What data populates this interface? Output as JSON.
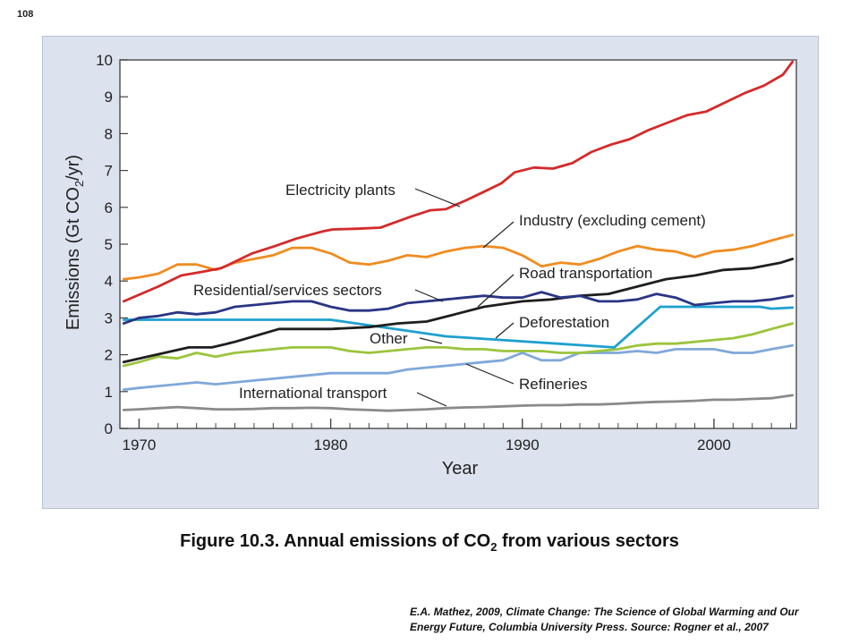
{
  "page_number": "108",
  "caption": {
    "prefix": "Figure 10.3.  Annual emissions of CO",
    "sub": "2",
    "suffix": " from various sectors"
  },
  "credit": {
    "line1": "E.A. Mathez, 2009, Climate Change: The Science of Global Warming and Our",
    "line2": "Energy Future, Columbia University Press. Source: Rogner et al., 2007"
  },
  "chart_data": {
    "type": "line",
    "xlabel": "Year",
    "ylabel": "Emissions (Gt CO2/yr)",
    "xlim": [
      1969,
      2004.3
    ],
    "ylim": [
      0,
      10
    ],
    "xticks": [
      1970,
      1980,
      1990,
      2000
    ],
    "yticks": [
      0,
      1,
      2,
      3,
      4,
      5,
      6,
      7,
      8,
      9,
      10
    ],
    "grid": false,
    "series": [
      {
        "name": "Electricity plants",
        "color": "#d42a2a",
        "x": [
          1969.2,
          1971,
          1972.2,
          1973.3,
          1974.3,
          1975.9,
          1977.1,
          1978.2,
          1978.9,
          1979.6,
          1980.1,
          1981.4,
          1982.6,
          1984.2,
          1985.2,
          1986,
          1987.1,
          1988.1,
          1988.9,
          1989.6,
          1990.6,
          1991.6,
          1992.6,
          1993.6,
          1994.6,
          1995.6,
          1996.6,
          1997.6,
          1998.6,
          1999.6,
          2000.6,
          2001.6,
          2002.6,
          2003.6,
          2004.1
        ],
        "y": [
          3.45,
          3.85,
          4.15,
          4.25,
          4.35,
          4.75,
          4.95,
          5.15,
          5.25,
          5.35,
          5.4,
          5.42,
          5.45,
          5.75,
          5.92,
          5.95,
          6.2,
          6.45,
          6.65,
          6.95,
          7.08,
          7.05,
          7.2,
          7.5,
          7.7,
          7.85,
          8.1,
          8.3,
          8.5,
          8.6,
          8.85,
          9.1,
          9.3,
          9.6,
          9.95
        ]
      },
      {
        "name": "Industry (excluding cement)",
        "color": "#f08c20",
        "x": [
          1969.2,
          1970,
          1971,
          1972,
          1973,
          1974,
          1975,
          1976,
          1977,
          1978,
          1979,
          1980,
          1981,
          1982,
          1983,
          1984,
          1985,
          1986,
          1987,
          1988,
          1989,
          1990,
          1991,
          1992,
          1993,
          1994,
          1995,
          1996,
          1997,
          1998,
          1999,
          2000,
          2001,
          2002,
          2003,
          2004.1
        ],
        "y": [
          4.05,
          4.1,
          4.2,
          4.45,
          4.45,
          4.3,
          4.5,
          4.6,
          4.7,
          4.9,
          4.9,
          4.75,
          4.5,
          4.45,
          4.55,
          4.7,
          4.65,
          4.8,
          4.9,
          4.95,
          4.9,
          4.7,
          4.4,
          4.5,
          4.45,
          4.6,
          4.8,
          4.95,
          4.85,
          4.8,
          4.65,
          4.8,
          4.85,
          4.95,
          5.1,
          5.25
        ]
      },
      {
        "name": "Road transportation",
        "color": "#1e1e1e",
        "x": [
          1969.2,
          1972.6,
          1973.8,
          1975,
          1977.3,
          1980,
          1982,
          1983.5,
          1985,
          1986.5,
          1988,
          1990,
          1991.5,
          1993,
          1994.5,
          1996,
          1997.5,
          1999,
          2000.5,
          2002,
          2003.5,
          2004.1
        ],
        "y": [
          1.8,
          2.2,
          2.2,
          2.35,
          2.7,
          2.7,
          2.75,
          2.85,
          2.9,
          3.1,
          3.3,
          3.45,
          3.5,
          3.6,
          3.65,
          3.85,
          4.05,
          4.15,
          4.3,
          4.35,
          4.5,
          4.6
        ]
      },
      {
        "name": "Residential/services sectors",
        "color": "#2a3584",
        "x": [
          1969.2,
          1970,
          1971,
          1972,
          1973,
          1974,
          1975,
          1976,
          1977,
          1978,
          1979,
          1980,
          1981,
          1982,
          1983,
          1984,
          1985,
          1986,
          1987,
          1988,
          1989,
          1990,
          1991,
          1992,
          1993,
          1994,
          1995,
          1996,
          1997,
          1998,
          1999,
          2000,
          2001,
          2002,
          2003,
          2004.1
        ],
        "y": [
          2.85,
          3.0,
          3.05,
          3.15,
          3.1,
          3.15,
          3.3,
          3.35,
          3.4,
          3.45,
          3.45,
          3.3,
          3.2,
          3.2,
          3.25,
          3.4,
          3.45,
          3.5,
          3.55,
          3.6,
          3.55,
          3.55,
          3.7,
          3.55,
          3.6,
          3.45,
          3.45,
          3.5,
          3.65,
          3.55,
          3.35,
          3.4,
          3.45,
          3.45,
          3.5,
          3.6
        ]
      },
      {
        "name": "Deforestation",
        "color": "#1ea0cf",
        "x": [
          1969.2,
          1980,
          1986,
          1994.8,
          1997.2,
          2002.4,
          2003,
          2004.1
        ],
        "y": [
          2.95,
          2.95,
          2.5,
          2.2,
          3.3,
          3.3,
          3.25,
          3.28
        ]
      },
      {
        "name": "Other",
        "color": "#9bc43c",
        "x": [
          1969.2,
          1970,
          1971,
          1972,
          1973,
          1974,
          1975,
          1976,
          1977,
          1978,
          1979,
          1980,
          1981,
          1982,
          1983,
          1984,
          1985,
          1986,
          1987,
          1988,
          1989,
          1990,
          1991,
          1992,
          1993,
          1994,
          1995,
          1996,
          1997,
          1998,
          1999,
          2000,
          2001,
          2002,
          2003,
          2004.1
        ],
        "y": [
          1.7,
          1.8,
          1.95,
          1.9,
          2.05,
          1.95,
          2.05,
          2.1,
          2.15,
          2.2,
          2.2,
          2.2,
          2.1,
          2.05,
          2.1,
          2.15,
          2.2,
          2.2,
          2.15,
          2.15,
          2.1,
          2.1,
          2.1,
          2.05,
          2.05,
          2.1,
          2.15,
          2.25,
          2.3,
          2.3,
          2.35,
          2.4,
          2.45,
          2.55,
          2.7,
          2.85
        ]
      },
      {
        "name": "Refineries",
        "color": "#7fa8d9",
        "x": [
          1969.2,
          1970,
          1971,
          1972,
          1973,
          1974,
          1975,
          1976,
          1977,
          1978,
          1979,
          1980,
          1981,
          1982,
          1983,
          1984,
          1985,
          1986,
          1987,
          1988,
          1989,
          1990,
          1991,
          1992,
          1993,
          1994,
          1995,
          1996,
          1997,
          1998,
          1999,
          2000,
          2001,
          2002,
          2003,
          2004.1
        ],
        "y": [
          1.05,
          1.1,
          1.15,
          1.2,
          1.25,
          1.2,
          1.25,
          1.3,
          1.35,
          1.4,
          1.45,
          1.5,
          1.5,
          1.5,
          1.5,
          1.6,
          1.65,
          1.7,
          1.75,
          1.8,
          1.85,
          2.05,
          1.85,
          1.85,
          2.05,
          2.05,
          2.05,
          2.1,
          2.05,
          2.15,
          2.15,
          2.15,
          2.05,
          2.05,
          2.15,
          2.25
        ]
      },
      {
        "name": "International transport",
        "color": "#8a8a8a",
        "x": [
          1969.2,
          1970,
          1971,
          1972,
          1973,
          1974,
          1975,
          1976,
          1977,
          1978,
          1979,
          1980,
          1981,
          1982,
          1983,
          1984,
          1985,
          1986,
          1987,
          1988,
          1989,
          1990,
          1991,
          1992,
          1993,
          1994,
          1995,
          1996,
          1997,
          1998,
          1999,
          2000,
          2001,
          2002,
          2003,
          2004.1
        ],
        "y": [
          0.5,
          0.52,
          0.55,
          0.58,
          0.55,
          0.52,
          0.52,
          0.53,
          0.55,
          0.55,
          0.56,
          0.55,
          0.52,
          0.5,
          0.48,
          0.5,
          0.52,
          0.55,
          0.57,
          0.58,
          0.6,
          0.62,
          0.63,
          0.63,
          0.65,
          0.65,
          0.67,
          0.7,
          0.72,
          0.73,
          0.75,
          0.78,
          0.78,
          0.8,
          0.82,
          0.9
        ]
      }
    ]
  }
}
